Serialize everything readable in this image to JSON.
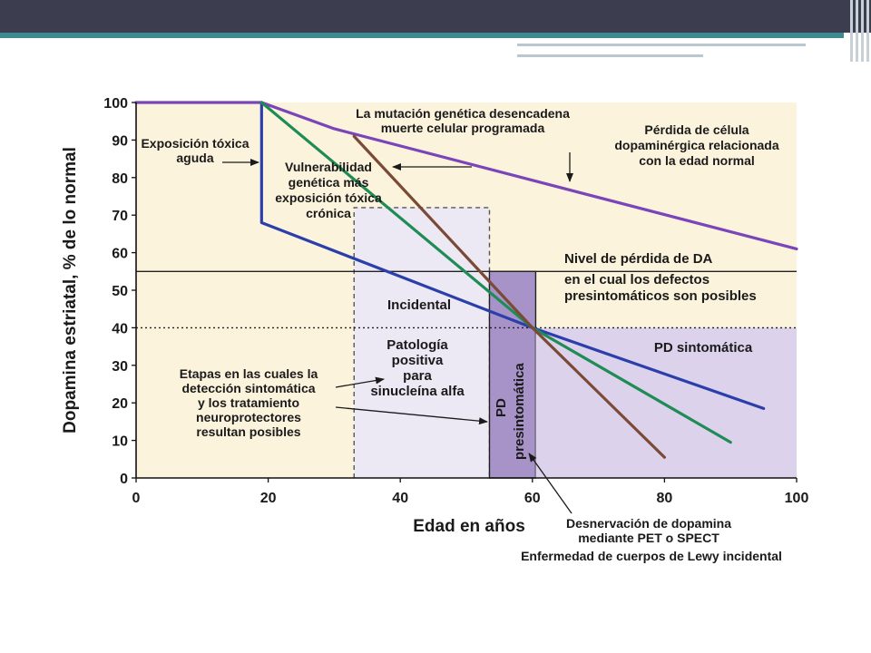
{
  "chart_data": {
    "type": "line",
    "xlabel": "Edad en años",
    "ylabel": "Dopamina estriatal, % de lo normal",
    "xlim": [
      0,
      100
    ],
    "ylim": [
      0,
      100
    ],
    "x_ticks": [
      "0",
      "20",
      "40",
      "60",
      "80",
      "100"
    ],
    "y_ticks": [
      "0",
      "10",
      "20",
      "30",
      "40",
      "50",
      "60",
      "70",
      "80",
      "90",
      "100"
    ],
    "grid": false,
    "series": [
      {
        "color": "#7a45b8",
        "x": [
          0,
          19,
          30,
          100
        ],
        "y": [
          100,
          100,
          93,
          61
        ]
      },
      {
        "color": "#2b3faa",
        "x": [
          19,
          19,
          60,
          95
        ],
        "y": [
          100,
          68,
          40,
          18.5
        ]
      },
      {
        "color": "#1f8c55",
        "x": [
          19,
          60,
          90
        ],
        "y": [
          100,
          40,
          9.5
        ]
      },
      {
        "color": "#7a4a36",
        "x": [
          33,
          60,
          80
        ],
        "y": [
          91,
          40,
          5.5
        ]
      }
    ],
    "reference_lines": [
      {
        "y": 55,
        "style": "solid"
      },
      {
        "y": 40,
        "style": "dotted"
      }
    ],
    "regions": [
      {
        "x": [
          33,
          53.5
        ],
        "y": [
          0,
          72
        ],
        "fill": "#ece8f4",
        "dashed_border": true
      },
      {
        "x": [
          53.5,
          60.5
        ],
        "y": [
          0,
          55
        ],
        "fill": "#a893c8",
        "solid_border": true
      },
      {
        "x": [
          60.5,
          100
        ],
        "y": [
          0,
          40
        ],
        "fill": "#ddd2ec"
      }
    ],
    "annotations": {
      "toxica": [
        "Exposición tóxica",
        "aguda"
      ],
      "vulnerabilidad": [
        "Vulnerabilidad",
        "genética más",
        "exposición tóxica",
        "crónica"
      ],
      "mutacion": [
        "La mutación genética desencadena",
        "muerte celular programada"
      ],
      "perdida": [
        "Pérdida de célula",
        "dopaminérgica relacionada",
        "con la edad normal"
      ],
      "nivel": [
        "Nivel de pérdida de DA",
        "en el cual los defectos",
        "presintomáticos son posibles"
      ],
      "incidental": "Incidental",
      "patologia": [
        "Patología",
        "positiva",
        "para",
        "sinucleína alfa"
      ],
      "pd_sintomatica": "PD sintomática",
      "pd_presintomatica": [
        "PD",
        "presintomática"
      ],
      "etapas": [
        "Etapas en las cuales la",
        "detección sintomática",
        "y los tratamiento",
        "neuroprotectores",
        "resultan posibles"
      ],
      "desnervacion": [
        "Desnervación de dopamina",
        "mediante PET o SPECT",
        "Enfermedad de cuerpos de Lewy incidental"
      ]
    },
    "colors": {
      "background": "#fcf3dc",
      "axis": "#111111",
      "annotation_arrow": "#1a1a1a"
    }
  }
}
